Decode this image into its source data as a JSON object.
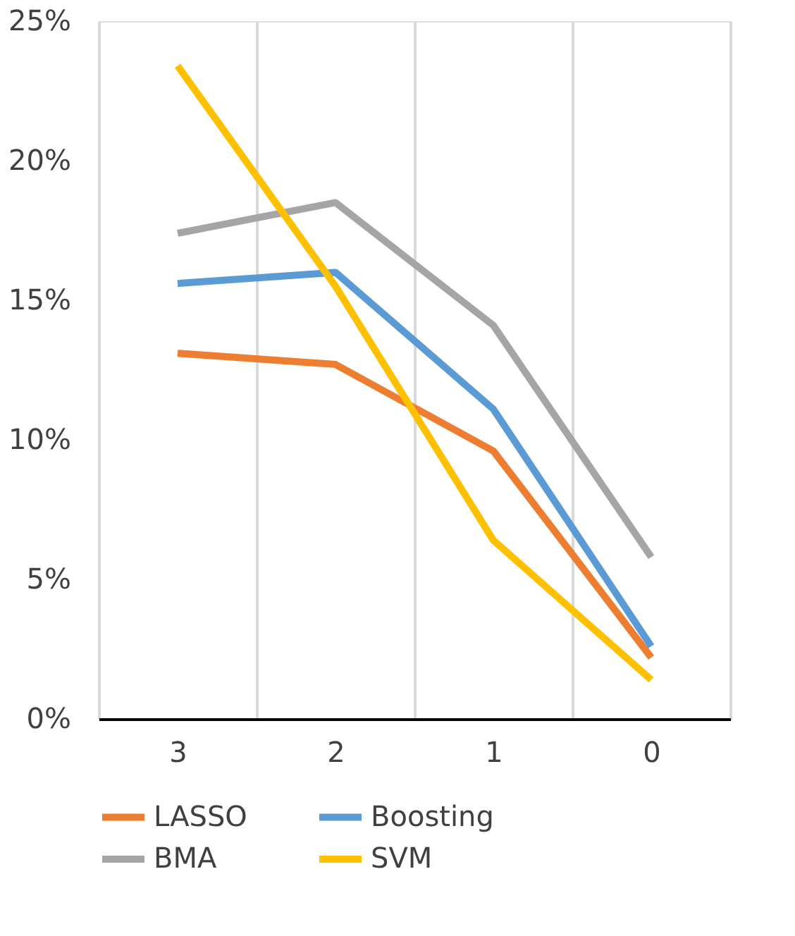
{
  "chart_data": {
    "type": "line",
    "categories": [
      "3",
      "2",
      "1",
      "0"
    ],
    "series": [
      {
        "name": "LASSO",
        "color": "#ed7d31",
        "values": [
          13.1,
          12.7,
          9.6,
          2.2
        ]
      },
      {
        "name": "Boosting",
        "color": "#5b9bd5",
        "values": [
          15.6,
          16.0,
          11.1,
          2.6
        ]
      },
      {
        "name": "BMA",
        "color": "#a5a5a5",
        "values": [
          17.4,
          18.5,
          14.1,
          5.8
        ]
      },
      {
        "name": "SVM",
        "color": "#ffc000",
        "values": [
          23.4,
          15.5,
          6.4,
          1.4
        ]
      }
    ],
    "ylim": [
      0,
      25
    ],
    "yticks": [
      {
        "value": 0,
        "label": "0%"
      },
      {
        "value": 5,
        "label": "5%"
      },
      {
        "value": 10,
        "label": "10%"
      },
      {
        "value": 15,
        "label": "15%"
      },
      {
        "value": 20,
        "label": "20%"
      },
      {
        "value": 25,
        "label": "25%"
      }
    ],
    "grid": "x",
    "legend": "bottom",
    "marker": "none",
    "line_style": "solid"
  }
}
